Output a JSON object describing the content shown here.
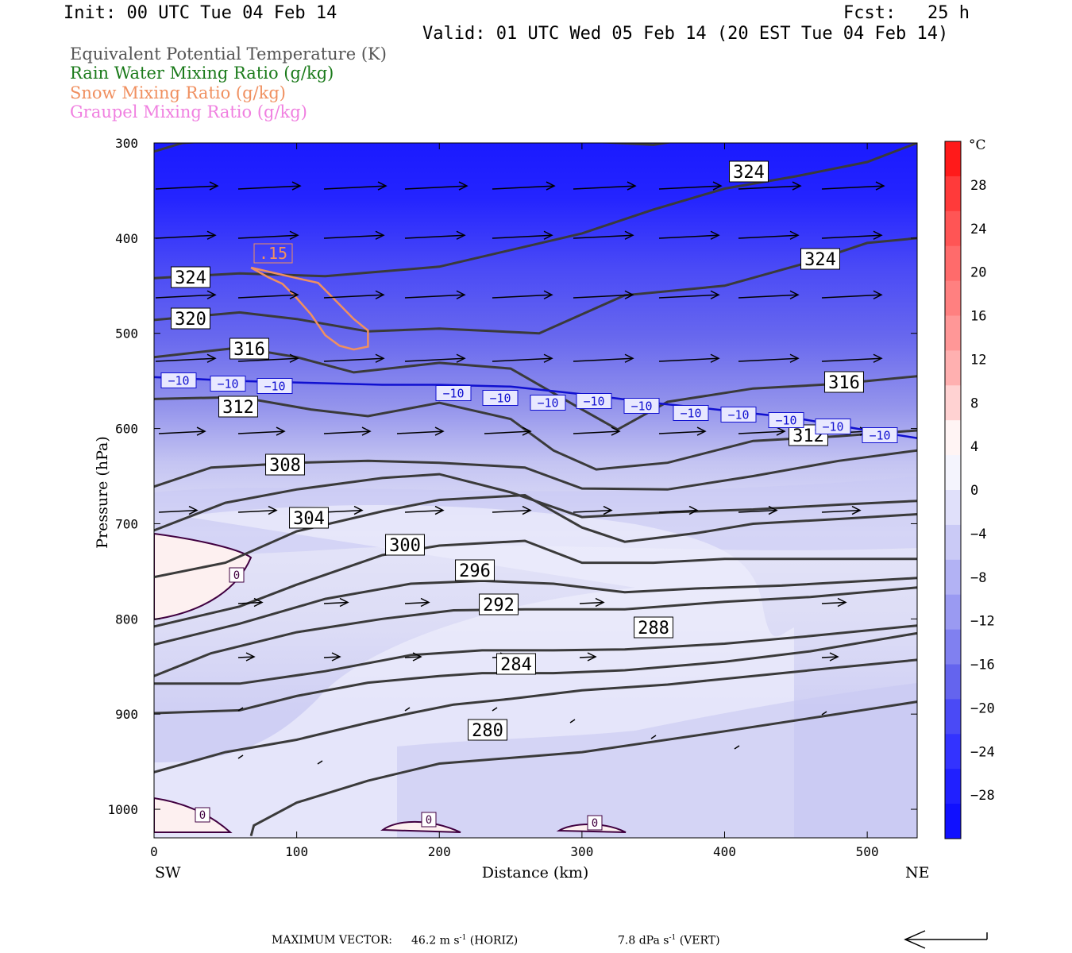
{
  "header": {
    "init": "Init: 00 UTC Tue 04 Feb 14",
    "fcst": "Fcst:   25 h",
    "valid": "Valid: 01 UTC Wed 05 Feb 14 (20 EST Tue 04 Feb 14)"
  },
  "legend": [
    {
      "label": "Equivalent Potential Temperature (K)",
      "color": "#555555"
    },
    {
      "label": "Rain Water Mixing Ratio (g/kg)",
      "color": "#1a7a1a"
    },
    {
      "label": "Snow Mixing Ratio (g/kg)",
      "color": "#f09060"
    },
    {
      "label": "Graupel Mixing Ratio (g/kg)",
      "color": "#f080e0"
    }
  ],
  "chart_data": {
    "type": "contour cross-section",
    "xlabel": "Distance (km)",
    "ylabel": "Pressure (hPa)",
    "xlim": [
      0,
      535
    ],
    "ylim": [
      1030,
      300
    ],
    "x_ticks": [
      0,
      100,
      200,
      300,
      400,
      500
    ],
    "y_ticks": [
      300,
      400,
      500,
      600,
      700,
      800,
      900,
      1000
    ],
    "x_end_labels": {
      "left": "SW",
      "right": "NE"
    },
    "colorbar": {
      "unit": "°C",
      "tick_labels": [
        "28",
        "24",
        "20",
        "16",
        "12",
        "8",
        "4",
        "0",
        "−4",
        "−8",
        "−12",
        "−16",
        "−20",
        "−24",
        "−28"
      ],
      "range": [
        -32,
        32
      ]
    },
    "theta_e_contours": [
      {
        "value": 324,
        "points": [
          [
            0,
            309
          ],
          [
            20,
            300
          ],
          [
            100,
            292
          ],
          [
            150,
            291
          ],
          [
            200,
            294
          ],
          [
            250,
            295
          ],
          [
            300,
            298
          ],
          [
            350,
            302
          ],
          [
            400,
            290
          ],
          [
            450,
            270
          ],
          [
            500,
            270
          ],
          [
            535,
            270
          ]
        ]
      },
      {
        "value": 324,
        "points": [
          [
            0,
            442
          ],
          [
            60,
            437
          ],
          [
            120,
            440
          ],
          [
            200,
            430
          ],
          [
            300,
            395
          ],
          [
            350,
            370
          ],
          [
            400,
            348
          ],
          [
            450,
            335
          ],
          [
            500,
            320
          ],
          [
            535,
            300
          ]
        ]
      },
      {
        "value": 320,
        "points": [
          [
            0,
            486
          ],
          [
            60,
            478
          ],
          [
            100,
            485
          ],
          [
            150,
            498
          ],
          [
            200,
            495
          ],
          [
            270,
            500
          ],
          [
            330,
            460
          ],
          [
            400,
            450
          ],
          [
            460,
            425
          ],
          [
            500,
            405
          ],
          [
            535,
            400
          ]
        ]
      },
      {
        "value": 316,
        "points": [
          [
            0,
            525
          ],
          [
            60,
            515
          ],
          [
            100,
            525
          ],
          [
            140,
            541
          ],
          [
            200,
            531
          ],
          [
            250,
            537
          ],
          [
            300,
            580
          ],
          [
            325,
            601
          ],
          [
            360,
            572
          ],
          [
            420,
            558
          ],
          [
            480,
            553
          ],
          [
            535,
            545
          ]
        ]
      },
      {
        "value": 312,
        "points": [
          [
            0,
            569
          ],
          [
            60,
            567
          ],
          [
            110,
            580
          ],
          [
            150,
            587
          ],
          [
            200,
            573
          ],
          [
            250,
            590
          ],
          [
            280,
            623
          ],
          [
            310,
            643
          ],
          [
            360,
            636
          ],
          [
            420,
            613
          ],
          [
            480,
            608
          ],
          [
            535,
            602
          ]
        ]
      },
      {
        "value": 308,
        "points": [
          [
            0,
            661
          ],
          [
            40,
            641
          ],
          [
            100,
            636
          ],
          [
            150,
            634
          ],
          [
            200,
            636
          ],
          [
            260,
            641
          ],
          [
            300,
            663
          ],
          [
            360,
            664
          ],
          [
            420,
            650
          ],
          [
            480,
            634
          ],
          [
            535,
            623
          ]
        ]
      },
      {
        "value": 304,
        "points": [
          [
            0,
            707
          ],
          [
            50,
            678
          ],
          [
            100,
            664
          ],
          [
            160,
            652
          ],
          [
            200,
            648
          ],
          [
            250,
            667
          ],
          [
            300,
            693
          ],
          [
            360,
            688
          ],
          [
            420,
            685
          ],
          [
            480,
            680
          ],
          [
            535,
            676
          ]
        ]
      },
      {
        "value": 300,
        "points": [
          [
            0,
            756
          ],
          [
            50,
            741
          ],
          [
            100,
            708
          ],
          [
            160,
            687
          ],
          [
            200,
            675
          ],
          [
            260,
            670
          ],
          [
            300,
            704
          ],
          [
            330,
            719
          ],
          [
            380,
            710
          ],
          [
            420,
            700
          ],
          [
            480,
            695
          ],
          [
            535,
            690
          ]
        ]
      },
      {
        "value": 296,
        "points": [
          [
            0,
            808
          ],
          [
            60,
            787
          ],
          [
            100,
            764
          ],
          [
            160,
            733
          ],
          [
            200,
            723
          ],
          [
            260,
            718
          ],
          [
            300,
            741
          ],
          [
            350,
            741
          ],
          [
            400,
            737
          ],
          [
            450,
            737
          ],
          [
            535,
            737
          ]
        ]
      },
      {
        "value": 292,
        "points": [
          [
            0,
            827
          ],
          [
            60,
            805
          ],
          [
            120,
            779
          ],
          [
            180,
            763
          ],
          [
            230,
            760
          ],
          [
            280,
            763
          ],
          [
            330,
            772
          ],
          [
            380,
            768
          ],
          [
            440,
            765
          ],
          [
            500,
            760
          ],
          [
            535,
            757
          ]
        ]
      },
      {
        "value": 288,
        "points": [
          [
            0,
            860
          ],
          [
            40,
            836
          ],
          [
            100,
            814
          ],
          [
            160,
            800
          ],
          [
            210,
            791
          ],
          [
            260,
            790
          ],
          [
            330,
            790
          ],
          [
            400,
            782
          ],
          [
            460,
            777
          ],
          [
            535,
            767
          ]
        ]
      },
      {
        "value": 284,
        "points": [
          [
            0,
            868
          ],
          [
            60,
            868
          ],
          [
            120,
            855
          ],
          [
            180,
            838
          ],
          [
            230,
            833
          ],
          [
            280,
            833
          ],
          [
            330,
            832
          ],
          [
            400,
            826
          ],
          [
            460,
            818
          ],
          [
            535,
            807
          ]
        ]
      },
      {
        "value": 280,
        "points": [
          [
            0,
            899
          ],
          [
            60,
            896
          ],
          [
            100,
            881
          ],
          [
            150,
            867
          ],
          [
            200,
            860
          ],
          [
            230,
            857
          ],
          [
            280,
            857
          ],
          [
            330,
            854
          ],
          [
            400,
            845
          ],
          [
            460,
            834
          ],
          [
            535,
            815
          ]
        ]
      },
      {
        "value": 280,
        "points": [
          [
            0,
            961
          ],
          [
            50,
            940
          ],
          [
            100,
            927
          ],
          [
            150,
            909
          ],
          [
            180,
            899
          ],
          [
            210,
            890
          ],
          [
            250,
            884
          ],
          [
            300,
            875
          ],
          [
            360,
            869
          ],
          [
            420,
            860
          ],
          [
            480,
            851
          ],
          [
            535,
            843
          ]
        ]
      },
      {
        "value": 280,
        "points": [
          [
            68,
            1028
          ],
          [
            70,
            1017
          ],
          [
            100,
            993
          ],
          [
            150,
            970
          ],
          [
            200,
            952
          ],
          [
            300,
            940
          ],
          [
            400,
            918
          ],
          [
            470,
            902
          ],
          [
            535,
            887
          ]
        ]
      }
    ],
    "temperature_minus10_isotherm": {
      "value": "−10",
      "points": [
        [
          0,
          546
        ],
        [
          60,
          550
        ],
        [
          110,
          552
        ],
        [
          160,
          554
        ],
        [
          200,
          554
        ],
        [
          250,
          556
        ],
        [
          300,
          564
        ],
        [
          350,
          573
        ],
        [
          400,
          581
        ],
        [
          450,
          589
        ],
        [
          500,
          602
        ],
        [
          535,
          610
        ]
      ]
    },
    "snow_contour": {
      "value": ".15",
      "points": [
        [
          68,
          431
        ],
        [
          100,
          442
        ],
        [
          115,
          447
        ],
        [
          125,
          462
        ],
        [
          140,
          485
        ],
        [
          150,
          497
        ],
        [
          150,
          514
        ],
        [
          140,
          517
        ],
        [
          130,
          513
        ],
        [
          120,
          502
        ],
        [
          110,
          480
        ],
        [
          100,
          463
        ],
        [
          90,
          448
        ],
        [
          80,
          441
        ],
        [
          68,
          431
        ]
      ]
    },
    "zero_isotherm_labels": [
      "0",
      "0",
      "0",
      "0"
    ]
  },
  "footer": {
    "max_vector": "MAXIMUM VECTOR:",
    "horiz_value": "46.2 m s",
    "horiz_unit": "(HORIZ)",
    "vert_value": "7.8 dPa s",
    "vert_unit": "(VERT)",
    "exp": "-1"
  }
}
